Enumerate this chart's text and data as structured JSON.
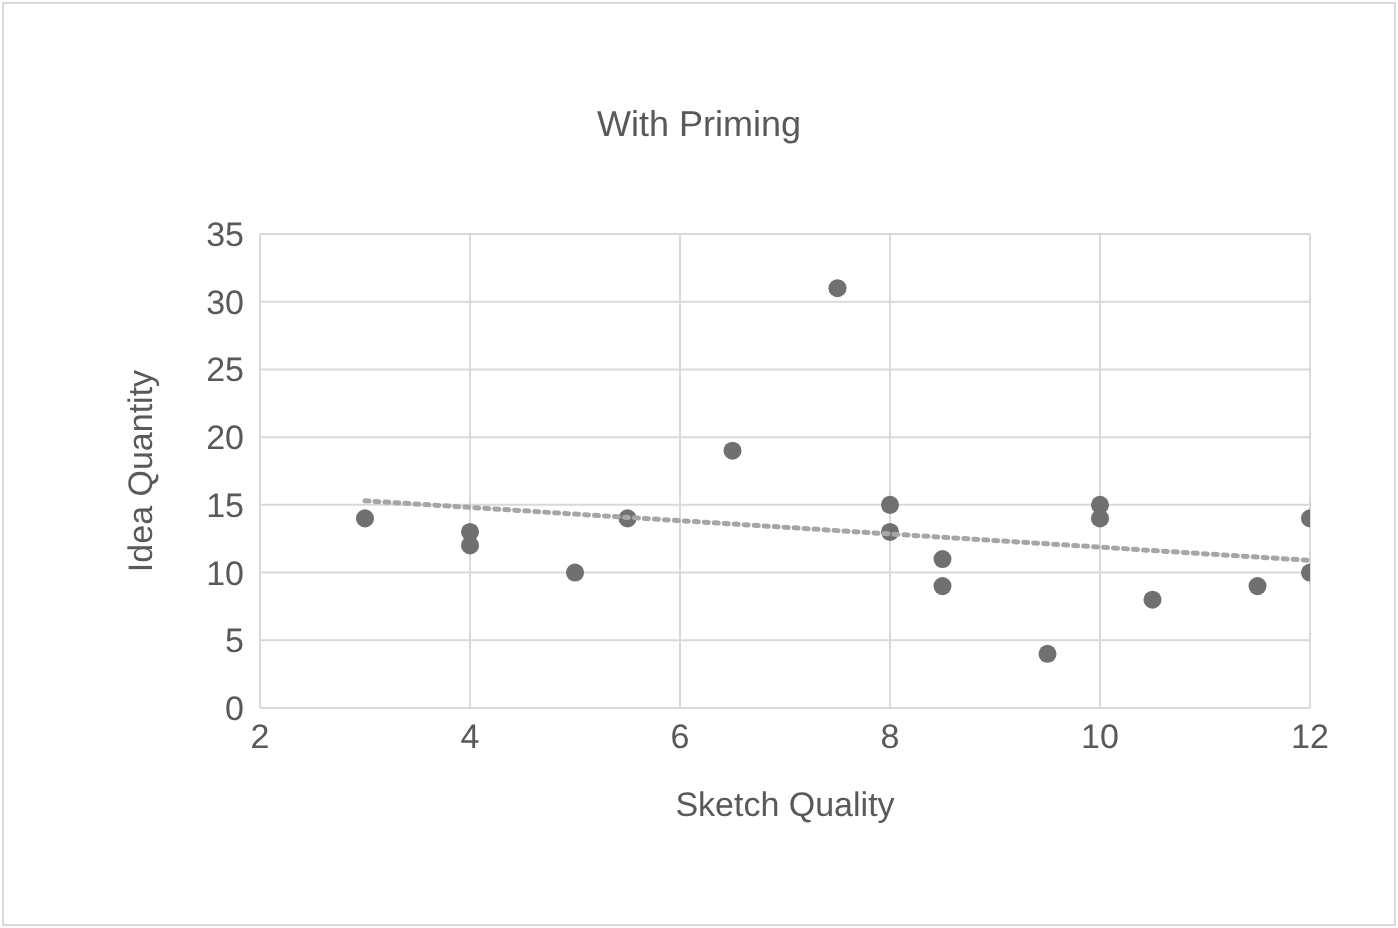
{
  "chart_data": {
    "type": "scatter",
    "title": "With Priming",
    "xlabel": "Sketch Quality",
    "ylabel": "Idea Quantity",
    "xlim": [
      2,
      12
    ],
    "xticks": [
      2,
      4,
      6,
      8,
      10,
      12
    ],
    "ylim": [
      0,
      35
    ],
    "yticks": [
      0,
      5,
      10,
      15,
      20,
      25,
      30,
      35
    ],
    "grid": true,
    "legend": false,
    "marker": "circle",
    "series": [
      {
        "color": "#707070",
        "x": [
          3,
          4,
          4,
          5,
          5.5,
          6.5,
          7.5,
          8,
          8,
          8.5,
          8.5,
          9.5,
          10,
          10,
          10.5,
          11.5,
          12,
          12
        ],
        "values": [
          14,
          13,
          12,
          10,
          14,
          19,
          31,
          15,
          13,
          11,
          9,
          4,
          15,
          14,
          8,
          9,
          14,
          10
        ]
      },
      {
        "type": "line",
        "color": "#a6a6a6",
        "line_style": "dotted",
        "marker": "none",
        "x": [
          3,
          12
        ],
        "values": [
          15.3,
          10.9
        ]
      }
    ]
  }
}
